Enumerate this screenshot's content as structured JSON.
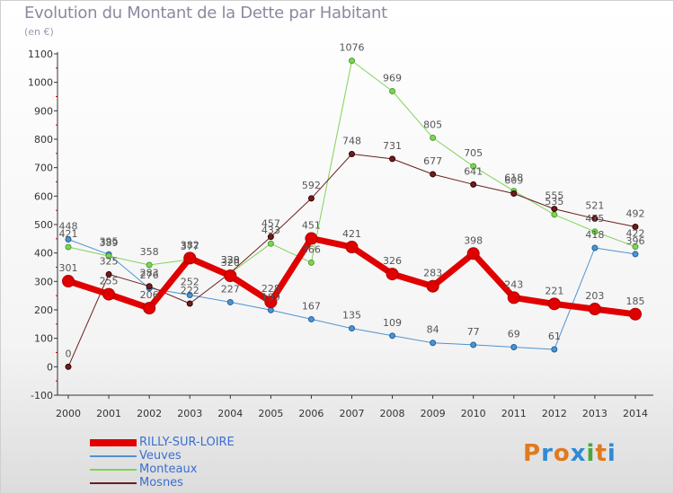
{
  "header": {
    "title": "Evolution du Montant de la Dette par Habitant",
    "unit": "(en €)"
  },
  "logo": {
    "text": "Proxiti",
    "colors": [
      "#e07a1f",
      "#2e8bd6",
      "#e07a1f",
      "#2e8bd6",
      "#4aa83a",
      "#e07a1f",
      "#2e8bd6"
    ]
  },
  "chart_data": {
    "type": "line",
    "title": "Evolution du Montant de la Dette par Habitant",
    "subtitle": "(en €)",
    "xlabel": "",
    "ylabel": "",
    "x": [
      "2000",
      "2001",
      "2002",
      "2003",
      "2004",
      "2005",
      "2006",
      "2007",
      "2008",
      "2009",
      "2010",
      "2011",
      "2012",
      "2013",
      "2014"
    ],
    "ylim": [
      -100,
      1100
    ],
    "yticks": [
      -100,
      0,
      100,
      200,
      300,
      400,
      500,
      600,
      700,
      800,
      900,
      1000,
      1100
    ],
    "grid": false,
    "legend_position": "bottom-left",
    "series": [
      {
        "name": "RILLY-SUR-LOIRE",
        "color": "#e00000",
        "emphasis": true,
        "values": [
          301,
          255,
          206,
          382,
          320,
          228,
          451,
          421,
          326,
          283,
          398,
          243,
          221,
          203,
          185
        ]
      },
      {
        "name": "Veuves",
        "color": "#4f93d0",
        "emphasis": false,
        "values": [
          448,
          395,
          276,
          252,
          227,
          199,
          167,
          135,
          109,
          84,
          77,
          69,
          61,
          418,
          396
        ]
      },
      {
        "name": "Monteaux",
        "color": "#7fd35a",
        "emphasis": false,
        "values": [
          421,
          389,
          358,
          377,
          329,
          433,
          366,
          1076,
          969,
          805,
          705,
          618,
          535,
          475,
          422
        ]
      },
      {
        "name": "Mosnes",
        "color": "#6b1f1f",
        "emphasis": false,
        "values": [
          0,
          325,
          283,
          222,
          330,
          457,
          592,
          748,
          731,
          677,
          641,
          609,
          555,
          521,
          492
        ]
      }
    ]
  }
}
